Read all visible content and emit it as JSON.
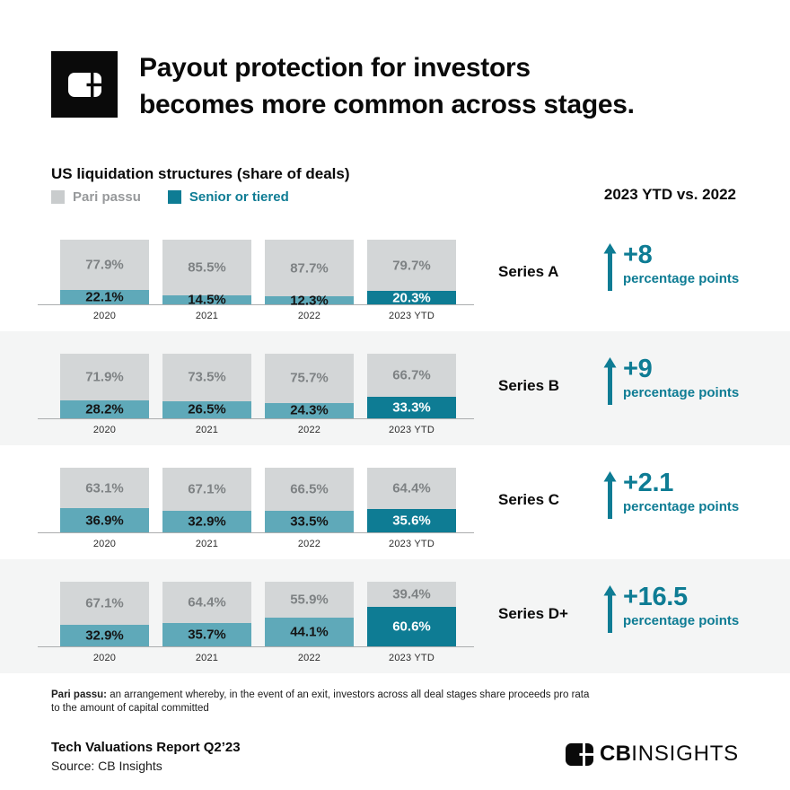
{
  "header": {
    "title_line1": "Payout protection for investors",
    "title_line2": "becomes more common across stages."
  },
  "chart_data": {
    "type": "bar",
    "stacked": true,
    "orientation": "vertical",
    "value_unit": "%",
    "title": "US liquidation structures (share of deals)",
    "comparison_header": "2023 YTD vs. 2022",
    "categories": [
      "2020",
      "2021",
      "2022",
      "2023 YTD"
    ],
    "highlight_category": "2023 YTD",
    "legend": [
      {
        "name": "Pari passu",
        "color": "#c9cccd"
      },
      {
        "name": "Senior or tiered",
        "color": "#0e7c94"
      }
    ],
    "colors": {
      "pari_passu_bar": "#d3d6d7",
      "senior_bar": "#5fa9b9",
      "senior_highlight_bar": "#0e7c94",
      "accent_text": "#0e7c94",
      "alt_row_background": "#f4f5f5"
    },
    "groups": [
      {
        "label": "Series A",
        "pari_passu": [
          77.9,
          85.5,
          87.7,
          79.7
        ],
        "senior_or_tiered": [
          22.1,
          14.5,
          12.3,
          20.3
        ],
        "change_value": "+8",
        "change_caption": "percentage points"
      },
      {
        "label": "Series B",
        "pari_passu": [
          71.9,
          73.5,
          75.7,
          66.7
        ],
        "senior_or_tiered": [
          28.2,
          26.5,
          24.3,
          33.3
        ],
        "change_value": "+9",
        "change_caption": "percentage points"
      },
      {
        "label": "Series C",
        "pari_passu": [
          63.1,
          67.1,
          66.5,
          64.4
        ],
        "senior_or_tiered": [
          36.9,
          32.9,
          33.5,
          35.6
        ],
        "change_value": "+2.1",
        "change_caption": "percentage points"
      },
      {
        "label": "Series D+",
        "pari_passu": [
          67.1,
          64.4,
          55.9,
          39.4
        ],
        "senior_or_tiered": [
          32.9,
          35.7,
          44.1,
          60.6
        ],
        "change_value": "+16.5",
        "change_caption": "percentage points"
      }
    ]
  },
  "footnote": {
    "term": "Pari passu:",
    "text": " an arrangement whereby, in the event of an exit, investors across all deal stages share proceeds pro rata to the amount of capital committed"
  },
  "footer": {
    "report": "Tech Valuations Report Q2’23",
    "source": "Source: CB Insights",
    "brand_cb": "CB",
    "brand_insights": "INSIGHTS"
  }
}
